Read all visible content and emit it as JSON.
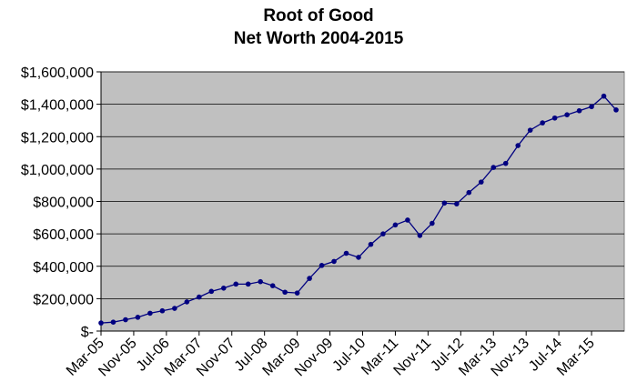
{
  "chart_data": {
    "type": "line",
    "title": "Root of Good",
    "subtitle": "Net Worth 2004-2015",
    "x": [
      "2005-03",
      "2005-06",
      "2005-09",
      "2005-12",
      "2006-03",
      "2006-06",
      "2006-09",
      "2006-12",
      "2007-03",
      "2007-06",
      "2007-09",
      "2007-12",
      "2008-03",
      "2008-06",
      "2008-09",
      "2008-12",
      "2009-03",
      "2009-06",
      "2009-09",
      "2009-12",
      "2010-03",
      "2010-06",
      "2010-09",
      "2010-12",
      "2011-03",
      "2011-06",
      "2011-09",
      "2011-12",
      "2012-03",
      "2012-06",
      "2012-09",
      "2012-12",
      "2013-03",
      "2013-06",
      "2013-09",
      "2013-12",
      "2014-03",
      "2014-06",
      "2014-09",
      "2014-12",
      "2015-03",
      "2015-06",
      "2015-09"
    ],
    "series": [
      {
        "name": "Net Worth",
        "color": "#000080",
        "values": [
          50000,
          55000,
          70000,
          85000,
          110000,
          125000,
          140000,
          180000,
          210000,
          245000,
          265000,
          290000,
          290000,
          305000,
          280000,
          240000,
          235000,
          325000,
          405000,
          430000,
          480000,
          455000,
          535000,
          600000,
          655000,
          685000,
          590000,
          665000,
          790000,
          785000,
          855000,
          920000,
          1010000,
          1035000,
          1145000,
          1240000,
          1285000,
          1315000,
          1335000,
          1360000,
          1385000,
          1450000,
          1365000
        ]
      }
    ],
    "xlim": [
      "2005-03",
      "2015-11"
    ],
    "xticks": [
      {
        "value": "2005-03",
        "label": "Mar-05"
      },
      {
        "value": "2005-11",
        "label": "Nov-05"
      },
      {
        "value": "2006-07",
        "label": "Jul-06"
      },
      {
        "value": "2007-03",
        "label": "Mar-07"
      },
      {
        "value": "2007-11",
        "label": "Nov-07"
      },
      {
        "value": "2008-07",
        "label": "Jul-08"
      },
      {
        "value": "2009-03",
        "label": "Mar-09"
      },
      {
        "value": "2009-11",
        "label": "Nov-09"
      },
      {
        "value": "2010-07",
        "label": "Jul-10"
      },
      {
        "value": "2011-03",
        "label": "Mar-11"
      },
      {
        "value": "2011-11",
        "label": "Nov-11"
      },
      {
        "value": "2012-07",
        "label": "Jul-12"
      },
      {
        "value": "2013-03",
        "label": "Mar-13"
      },
      {
        "value": "2013-11",
        "label": "Nov-13"
      },
      {
        "value": "2014-07",
        "label": "Jul-14"
      },
      {
        "value": "2015-03",
        "label": "Mar-15"
      }
    ],
    "ylim": [
      0,
      1600000
    ],
    "yticks": [
      {
        "value": 0,
        "label": "$-"
      },
      {
        "value": 200000,
        "label": "$200,000"
      },
      {
        "value": 400000,
        "label": "$400,000"
      },
      {
        "value": 600000,
        "label": "$600,000"
      },
      {
        "value": 800000,
        "label": "$800,000"
      },
      {
        "value": 1000000,
        "label": "$1,000,000"
      },
      {
        "value": 1200000,
        "label": "$1,200,000"
      },
      {
        "value": 1400000,
        "label": "$1,400,000"
      },
      {
        "value": 1600000,
        "label": "$1,600,000"
      }
    ],
    "grid": true,
    "plot_background": "#c0c0c0"
  }
}
